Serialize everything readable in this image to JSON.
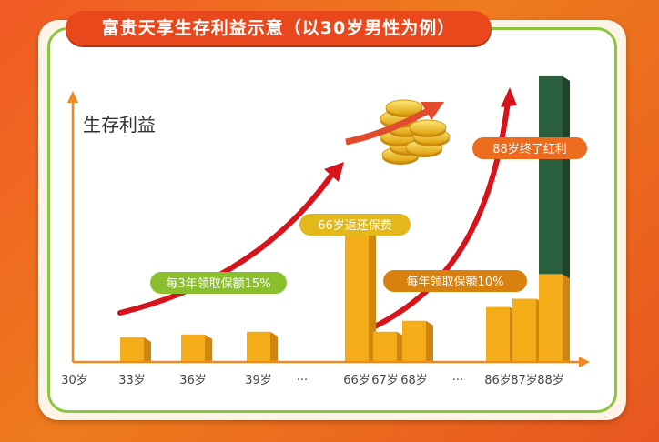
{
  "title": "富贵天享生存利益示意（以30岁男性为例）",
  "chart_data": {
    "type": "bar",
    "ylabel": "生存利益",
    "xlabel": "",
    "categories": [
      "30岁",
      "33岁",
      "36岁",
      "39岁",
      "···",
      "66岁",
      "67岁",
      "68岁",
      "···",
      "86岁",
      "87岁",
      "88岁"
    ],
    "ylim": [
      0,
      100
    ],
    "series": [
      {
        "values": [
          0,
          9,
          10,
          11,
          null,
          50,
          11,
          15,
          null,
          20,
          23,
          32
        ]
      },
      {
        "values": [
          0,
          0,
          0,
          0,
          null,
          0,
          0,
          0,
          null,
          0,
          0,
          72
        ]
      }
    ],
    "annotations": [
      {
        "text": "每3年领取保额15%",
        "color": "#8bbf2e"
      },
      {
        "text": "66岁返还保费",
        "color": "#e3b81a"
      },
      {
        "text": "每年领取保额10%",
        "color": "#d8810f"
      },
      {
        "text": "88岁终了红利",
        "color": "#ec6b1c"
      }
    ],
    "colors": {
      "bar": "#f4ac18",
      "bar_dark": "#cf8510",
      "bonus": "#2a5e3c",
      "arrow": "#d7141c",
      "axis": "#f08a20"
    }
  }
}
